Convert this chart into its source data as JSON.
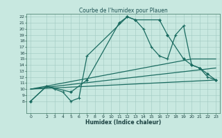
{
  "title": "Courbe de l'humidex pour Plauen",
  "xlabel": "Humidex (Indice chaleur)",
  "xlim": [
    -0.5,
    23.5
  ],
  "ylim": [
    6,
    22.5
  ],
  "xticks": [
    0,
    2,
    3,
    4,
    5,
    6,
    7,
    8,
    9,
    10,
    11,
    12,
    13,
    14,
    15,
    16,
    17,
    18,
    19,
    20,
    21,
    22,
    23
  ],
  "yticks": [
    8,
    9,
    10,
    11,
    12,
    13,
    14,
    15,
    16,
    17,
    18,
    19,
    20,
    21,
    22
  ],
  "bg_color": "#c8e8e0",
  "grid_color": "#a0c8c0",
  "line_color": "#1a6b60",
  "curve1_x": [
    0,
    2,
    3,
    4,
    5,
    6,
    7,
    12,
    13,
    14,
    15,
    16,
    17,
    18,
    19,
    20,
    21,
    22,
    23
  ],
  "curve1_y": [
    8,
    10.5,
    10,
    9.5,
    8,
    8.5,
    15.5,
    22,
    21.5,
    20,
    17,
    15.5,
    15,
    19,
    20.5,
    14,
    13.5,
    12,
    11.5
  ],
  "curve2_x": [
    0,
    2,
    5,
    7,
    11,
    12,
    13,
    16,
    17,
    19,
    20,
    21,
    22,
    23
  ],
  "curve2_y": [
    8,
    10.5,
    9.5,
    11.5,
    21,
    22,
    21.5,
    21.5,
    19,
    15,
    14,
    13.5,
    12.5,
    11.5
  ],
  "line3_x": [
    0,
    20,
    23
  ],
  "line3_y": [
    10,
    15,
    15
  ],
  "line4_x": [
    0,
    23
  ],
  "line4_y": [
    10,
    13.5
  ],
  "line5_x": [
    0,
    23
  ],
  "line5_y": [
    10,
    11.5
  ]
}
